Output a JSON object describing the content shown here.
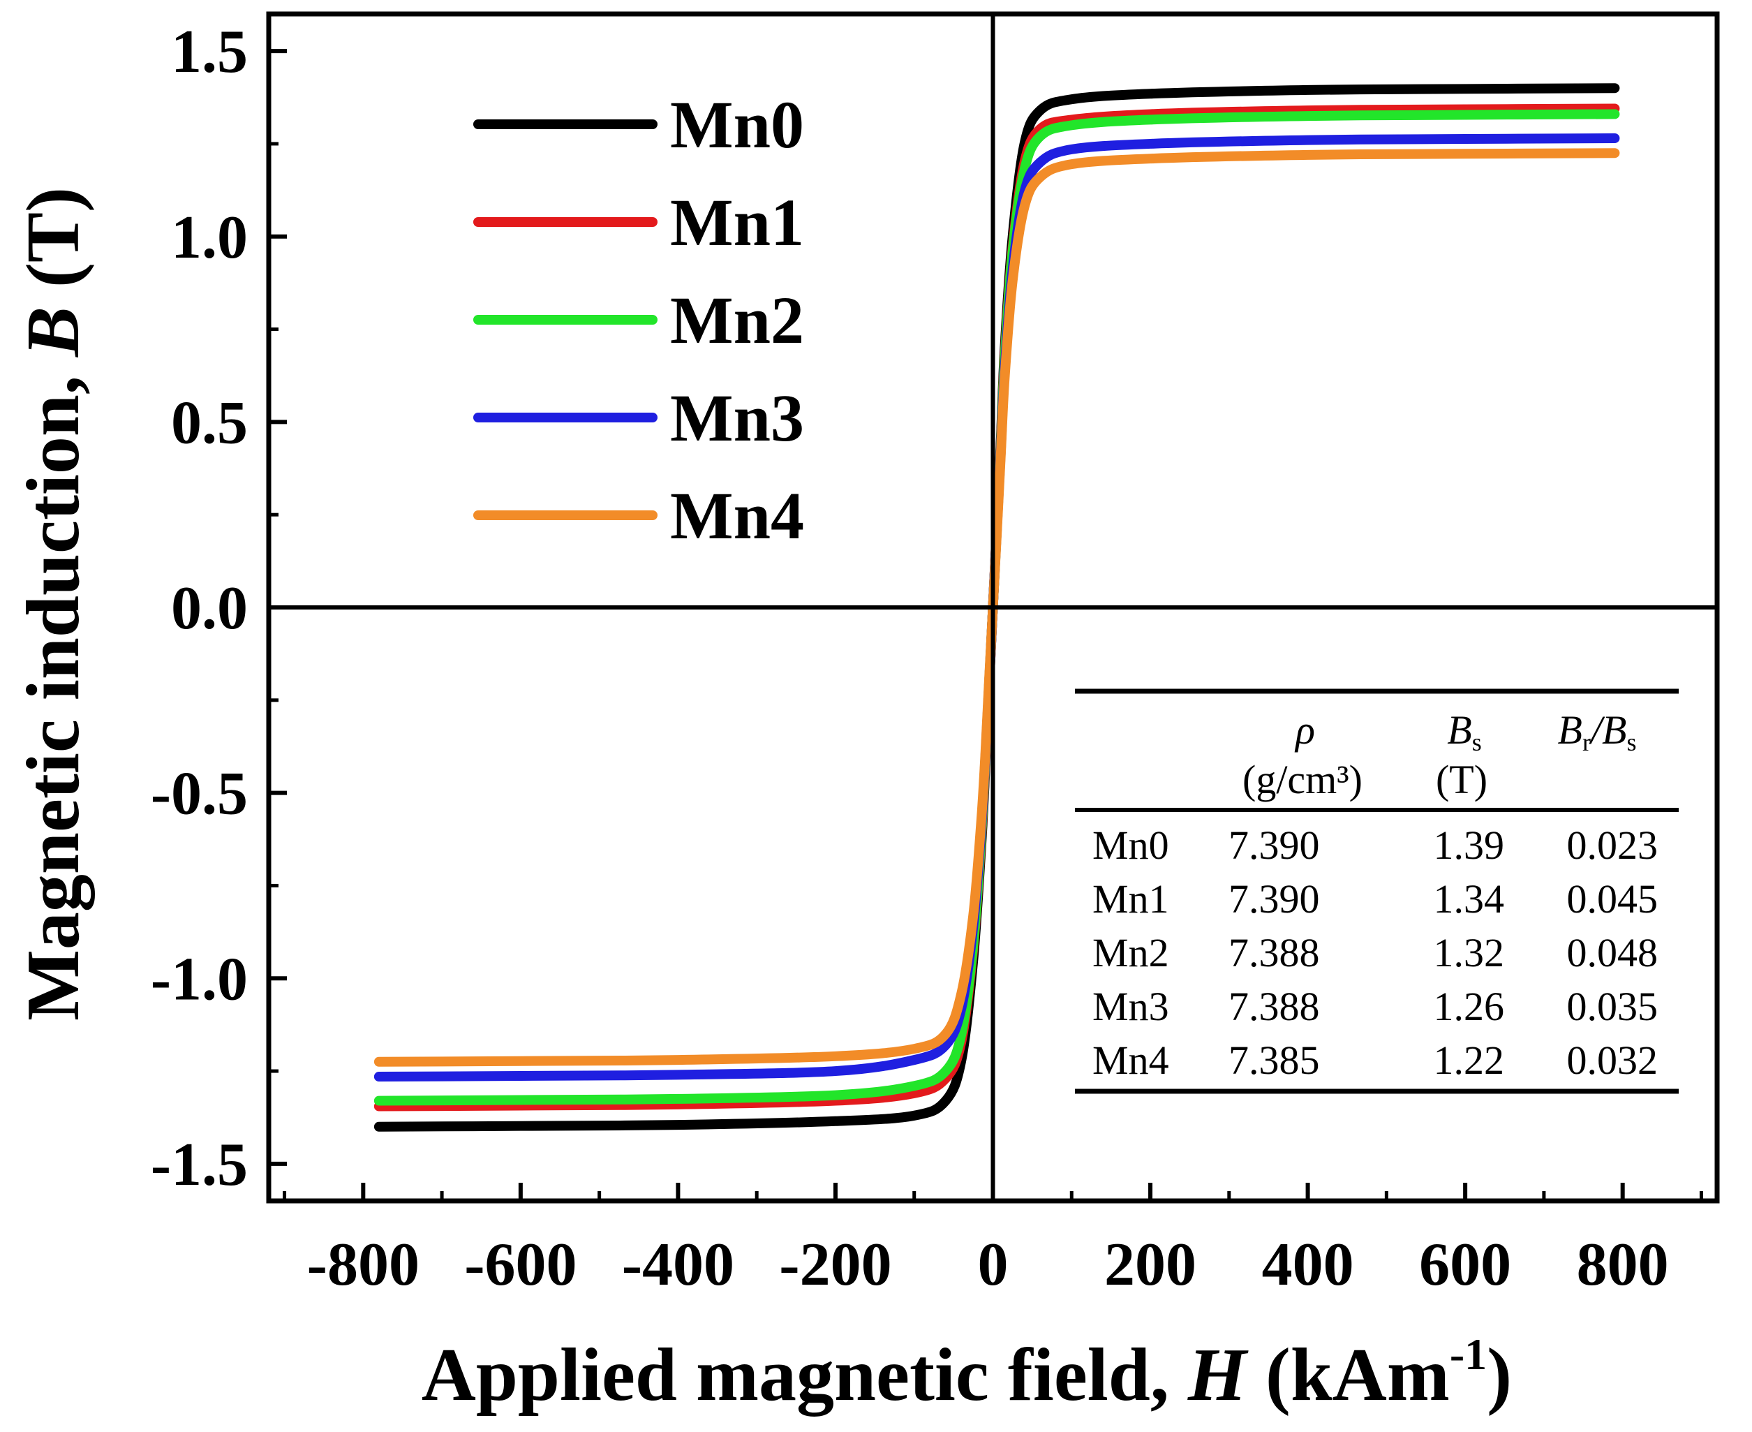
{
  "chart_data": {
    "type": "line",
    "title": "",
    "xlabel": {
      "prefix": "Applied magnetic field, ",
      "symbol": "H",
      "unit_open": " (kAm",
      "unit_exp": "-1",
      "unit_close": ")"
    },
    "ylabel": {
      "prefix": "Magnetic induction, ",
      "symbol": "B",
      "unit": " (T)"
    },
    "xlim": [
      -920,
      920
    ],
    "ylim": [
      -1.6,
      1.6
    ],
    "xticks": [
      -800,
      -600,
      -400,
      -200,
      0,
      200,
      400,
      600,
      800
    ],
    "xtick_labels": [
      "-800",
      "-600",
      "-400",
      "-200",
      "0",
      "200",
      "400",
      "600",
      "800"
    ],
    "yticks": [
      -1.5,
      -1.0,
      -0.5,
      0.0,
      0.5,
      1.0,
      1.5
    ],
    "ytick_labels": [
      "-1.5",
      "-1.0",
      "-0.5",
      "0.0",
      "0.5",
      "1.0",
      "1.5"
    ],
    "grid": false,
    "legend_position": "top-left",
    "series": [
      {
        "name": "Mn0",
        "color": "#000000",
        "Bs": 1.39,
        "Bsat_hi": 1.4,
        "knee": 1.35,
        "Hknee": 60,
        "x": [
          -780,
          -600,
          -400,
          -200,
          -100,
          -60,
          -40,
          -25,
          -15,
          -10,
          -5,
          0,
          5,
          10,
          15,
          25,
          40,
          60,
          100,
          200,
          400,
          600,
          790
        ],
        "y": [
          -1.4,
          -1.398,
          -1.395,
          -1.385,
          -1.37,
          -1.33,
          -1.22,
          -0.95,
          -0.65,
          -0.45,
          -0.22,
          0.0,
          0.22,
          0.45,
          0.7,
          1.0,
          1.25,
          1.34,
          1.37,
          1.385,
          1.395,
          1.398,
          1.4
        ]
      },
      {
        "name": "Mn1",
        "color": "#e31a1c",
        "Bs": 1.34,
        "x": [
          -780,
          -600,
          -400,
          -200,
          -100,
          -60,
          -40,
          -25,
          -15,
          -10,
          -5,
          0,
          5,
          10,
          15,
          25,
          40,
          60,
          100,
          200,
          400,
          600,
          790
        ],
        "y": [
          -1.345,
          -1.343,
          -1.34,
          -1.33,
          -1.31,
          -1.27,
          -1.17,
          -0.92,
          -0.63,
          -0.44,
          -0.22,
          0.0,
          0.22,
          0.44,
          0.68,
          0.97,
          1.2,
          1.29,
          1.315,
          1.33,
          1.34,
          1.343,
          1.345
        ]
      },
      {
        "name": "Mn2",
        "color": "#22e52a",
        "Bs": 1.32,
        "x": [
          -780,
          -600,
          -400,
          -200,
          -100,
          -60,
          -40,
          -25,
          -15,
          -10,
          -5,
          0,
          5,
          10,
          15,
          25,
          40,
          60,
          100,
          200,
          400,
          600,
          790
        ],
        "y": [
          -1.33,
          -1.328,
          -1.325,
          -1.315,
          -1.29,
          -1.25,
          -1.15,
          -0.91,
          -0.62,
          -0.43,
          -0.21,
          0.0,
          0.21,
          0.43,
          0.67,
          0.96,
          1.18,
          1.27,
          1.3,
          1.315,
          1.325,
          1.328,
          1.33
        ]
      },
      {
        "name": "Mn3",
        "color": "#1f1fe0",
        "Bs": 1.26,
        "x": [
          -780,
          -600,
          -400,
          -200,
          -100,
          -60,
          -40,
          -25,
          -15,
          -10,
          -5,
          0,
          5,
          10,
          15,
          25,
          40,
          60,
          100,
          200,
          400,
          600,
          790
        ],
        "y": [
          -1.265,
          -1.263,
          -1.26,
          -1.25,
          -1.22,
          -1.18,
          -1.08,
          -0.86,
          -0.6,
          -0.42,
          -0.21,
          0.0,
          0.21,
          0.42,
          0.64,
          0.91,
          1.12,
          1.2,
          1.235,
          1.25,
          1.26,
          1.263,
          1.265
        ]
      },
      {
        "name": "Mn4",
        "color": "#f28c28",
        "Bs": 1.22,
        "x": [
          -780,
          -600,
          -400,
          -200,
          -100,
          -60,
          -40,
          -25,
          -15,
          -10,
          -5,
          0,
          5,
          10,
          15,
          25,
          40,
          60,
          100,
          200,
          400,
          600,
          790
        ],
        "y": [
          -1.225,
          -1.223,
          -1.22,
          -1.21,
          -1.19,
          -1.15,
          -1.04,
          -0.83,
          -0.58,
          -0.41,
          -0.2,
          0.0,
          0.2,
          0.41,
          0.62,
          0.88,
          1.08,
          1.16,
          1.195,
          1.21,
          1.22,
          1.223,
          1.225
        ]
      }
    ],
    "inset_table": {
      "headers": [
        {
          "symbol": "ρ",
          "sub": "",
          "suffix": "",
          "unit": "(g/cm³)"
        },
        {
          "symbol": "B",
          "sub": "s",
          "suffix": "",
          "unit": "(T)"
        },
        {
          "symbol": "B",
          "sub": "r",
          "suffix": "/B",
          "sub2": "s",
          "unit": ""
        }
      ],
      "rows": [
        [
          "Mn0",
          "7.390",
          "1.39",
          "0.023"
        ],
        [
          "Mn1",
          "7.390",
          "1.34",
          "0.045"
        ],
        [
          "Mn2",
          "7.388",
          "1.32",
          "0.048"
        ],
        [
          "Mn3",
          "7.388",
          "1.26",
          "0.035"
        ],
        [
          "Mn4",
          "7.385",
          "1.22",
          "0.032"
        ]
      ]
    }
  }
}
